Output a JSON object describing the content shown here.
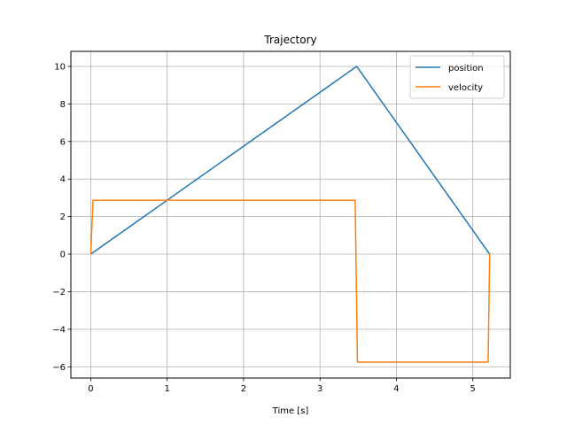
{
  "chart_data": {
    "type": "line",
    "title": "Trajectory",
    "xlabel": "Time [s]",
    "ylabel": "",
    "xlim": [
      -0.26,
      5.49
    ],
    "ylim": [
      -6.6,
      10.8
    ],
    "xticks": [
      0,
      1,
      2,
      3,
      4,
      5
    ],
    "xtick_labels": [
      "0",
      "1",
      "2",
      "3",
      "4",
      "5"
    ],
    "yticks": [
      -6,
      -4,
      -2,
      0,
      2,
      4,
      6,
      8,
      10
    ],
    "ytick_labels": [
      "−6",
      "−4",
      "−2",
      "0",
      "2",
      "4",
      "6",
      "8",
      "10"
    ],
    "grid": true,
    "legend_position": "top-right",
    "series": [
      {
        "name": "position",
        "color": "#1f77b4",
        "x": [
          0,
          3.48,
          5.22
        ],
        "y": [
          0,
          10,
          0
        ]
      },
      {
        "name": "velocity",
        "color": "#ff7f0e",
        "x": [
          0,
          0.03,
          3.46,
          3.49,
          5.2,
          5.22
        ],
        "y": [
          0,
          2.87,
          2.87,
          -5.75,
          -5.75,
          0
        ]
      }
    ]
  }
}
